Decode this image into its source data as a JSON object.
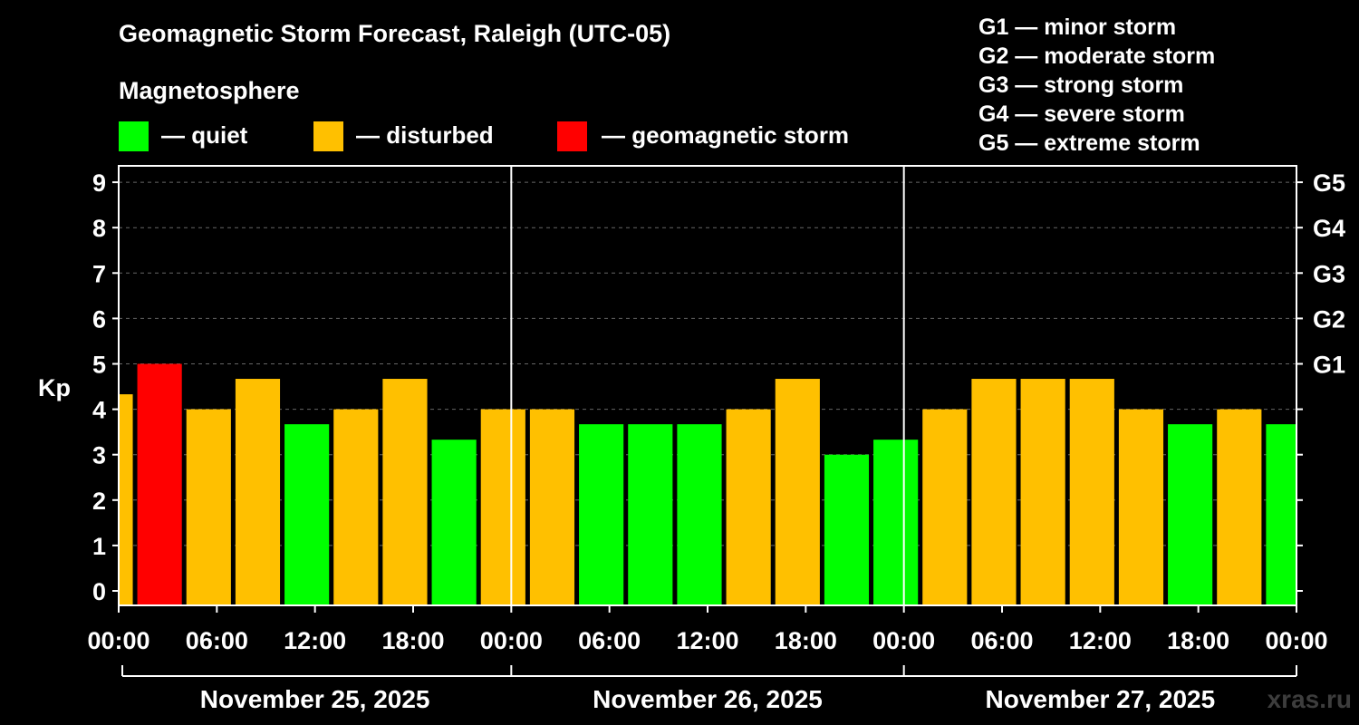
{
  "header": {
    "title": "Geomagnetic Storm Forecast, Raleigh (UTC-05)",
    "subtitle": "Magnetosphere"
  },
  "legend": {
    "items": [
      {
        "label": "— quiet",
        "color": "#00ff00"
      },
      {
        "label": "— disturbed",
        "color": "#ffc000"
      },
      {
        "label": "— geomagnetic storm",
        "color": "#ff0000"
      }
    ],
    "g_scale": [
      "G1 — minor storm",
      "G2 — moderate storm",
      "G3 — strong storm",
      "G4 — severe storm",
      "G5 — extreme storm"
    ]
  },
  "watermark": "xras.ru",
  "colors": {
    "quiet": "#00ff00",
    "disturbed": "#ffc000",
    "storm": "#ff0000",
    "background": "#000000",
    "axis": "#ffffff",
    "grid": "#666666"
  },
  "chart_data": {
    "type": "bar",
    "ylabel": "Kp",
    "ylim": [
      0,
      9
    ],
    "yticks": [
      "0",
      "1",
      "2",
      "3",
      "4",
      "5",
      "6",
      "7",
      "8",
      "9"
    ],
    "right_ticks": [
      {
        "value": 5,
        "label": "G1"
      },
      {
        "value": 6,
        "label": "G2"
      },
      {
        "value": 7,
        "label": "G3"
      },
      {
        "value": 8,
        "label": "G4"
      },
      {
        "value": 9,
        "label": "G5"
      }
    ],
    "grid": "horizontal dashed",
    "x_range_hours": [
      0,
      72
    ],
    "xticks": [
      "00:00",
      "06:00",
      "12:00",
      "18:00",
      "00:00",
      "06:00",
      "12:00",
      "18:00",
      "00:00",
      "06:00",
      "12:00",
      "18:00",
      "00:00"
    ],
    "dates": [
      "November 25, 2025",
      "November 26, 2025",
      "November 27, 2025"
    ],
    "bars": [
      {
        "start": 0,
        "end": 1,
        "kp": 4.33,
        "level": "disturbed"
      },
      {
        "start": 1,
        "end": 4,
        "kp": 5.0,
        "level": "storm"
      },
      {
        "start": 4,
        "end": 7,
        "kp": 4.0,
        "level": "disturbed"
      },
      {
        "start": 7,
        "end": 10,
        "kp": 4.67,
        "level": "disturbed"
      },
      {
        "start": 10,
        "end": 13,
        "kp": 3.67,
        "level": "quiet"
      },
      {
        "start": 13,
        "end": 16,
        "kp": 4.0,
        "level": "disturbed"
      },
      {
        "start": 16,
        "end": 19,
        "kp": 4.67,
        "level": "disturbed"
      },
      {
        "start": 19,
        "end": 22,
        "kp": 3.33,
        "level": "quiet"
      },
      {
        "start": 22,
        "end": 25,
        "kp": 4.0,
        "level": "disturbed"
      },
      {
        "start": 25,
        "end": 28,
        "kp": 4.0,
        "level": "disturbed"
      },
      {
        "start": 28,
        "end": 31,
        "kp": 3.67,
        "level": "quiet"
      },
      {
        "start": 31,
        "end": 34,
        "kp": 3.67,
        "level": "quiet"
      },
      {
        "start": 34,
        "end": 37,
        "kp": 3.67,
        "level": "quiet"
      },
      {
        "start": 37,
        "end": 40,
        "kp": 4.0,
        "level": "disturbed"
      },
      {
        "start": 40,
        "end": 43,
        "kp": 4.67,
        "level": "disturbed"
      },
      {
        "start": 43,
        "end": 46,
        "kp": 3.0,
        "level": "quiet"
      },
      {
        "start": 46,
        "end": 49,
        "kp": 3.33,
        "level": "quiet"
      },
      {
        "start": 49,
        "end": 52,
        "kp": 4.0,
        "level": "disturbed"
      },
      {
        "start": 52,
        "end": 55,
        "kp": 4.67,
        "level": "disturbed"
      },
      {
        "start": 55,
        "end": 58,
        "kp": 4.67,
        "level": "disturbed"
      },
      {
        "start": 58,
        "end": 61,
        "kp": 4.67,
        "level": "disturbed"
      },
      {
        "start": 61,
        "end": 64,
        "kp": 4.0,
        "level": "disturbed"
      },
      {
        "start": 64,
        "end": 67,
        "kp": 3.67,
        "level": "quiet"
      },
      {
        "start": 67,
        "end": 70,
        "kp": 4.0,
        "level": "disturbed"
      },
      {
        "start": 70,
        "end": 72,
        "kp": 3.67,
        "level": "quiet"
      }
    ]
  }
}
